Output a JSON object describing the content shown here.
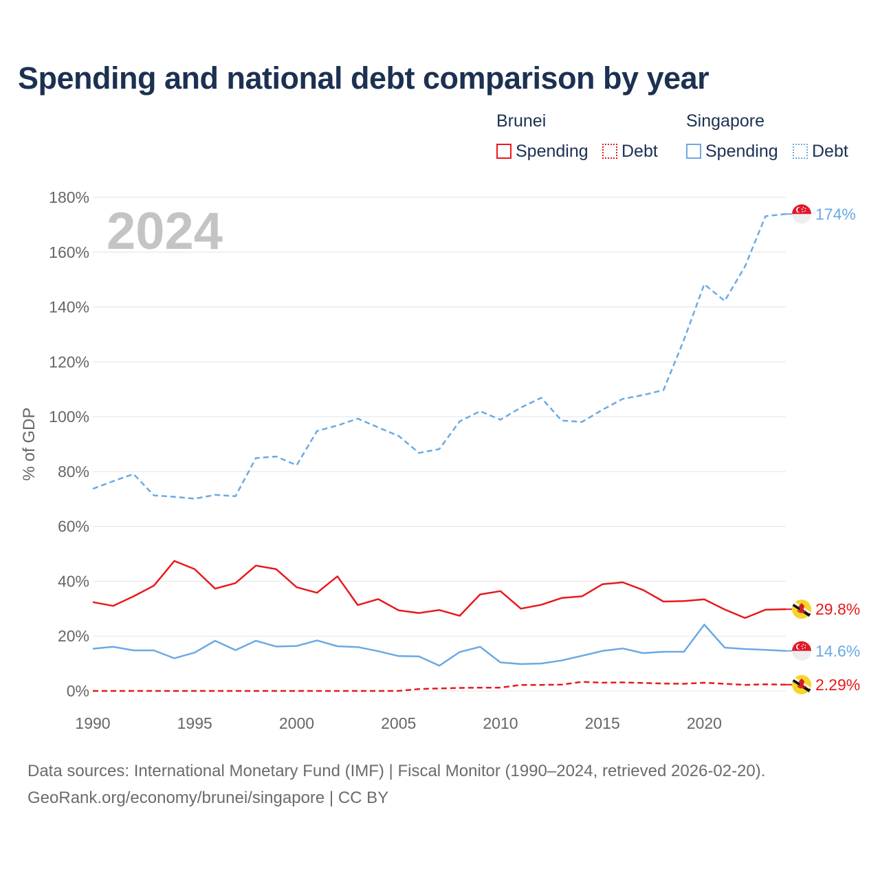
{
  "title": "Spending and national debt comparison by year",
  "legend": {
    "groups": [
      {
        "name": "Brunei",
        "items": [
          "Spending",
          "Debt"
        ]
      },
      {
        "name": "Singapore",
        "items": [
          "Spending",
          "Debt"
        ]
      }
    ]
  },
  "colors": {
    "brunei": "#e8181c",
    "singapore": "#6aa9e4",
    "title": "#1c3152",
    "axis_text": "#666666",
    "year_watermark": "#c4c4c4"
  },
  "chart_data": {
    "type": "line",
    "ylabel": "% of GDP",
    "ylim": [
      0,
      180
    ],
    "yticks": [
      0,
      20,
      40,
      60,
      80,
      100,
      120,
      140,
      160,
      180
    ],
    "ytick_labels": [
      "0%",
      "20%",
      "40%",
      "60%",
      "80%",
      "100%",
      "120%",
      "140%",
      "160%",
      "180%"
    ],
    "xlim": [
      1990,
      2024
    ],
    "xticks": [
      1990,
      1995,
      2000,
      2005,
      2010,
      2015,
      2020
    ],
    "xtick_labels": [
      "1990",
      "1995",
      "2000",
      "2005",
      "2010",
      "2015",
      "2020"
    ],
    "year_label": "2024",
    "grid": true,
    "x": [
      1990,
      1991,
      1992,
      1993,
      1994,
      1995,
      1996,
      1997,
      1998,
      1999,
      2000,
      2001,
      2002,
      2003,
      2004,
      2005,
      2006,
      2007,
      2008,
      2009,
      2010,
      2011,
      2012,
      2013,
      2014,
      2015,
      2016,
      2017,
      2018,
      2019,
      2020,
      2021,
      2022,
      2023,
      2024
    ],
    "series": [
      {
        "name": "Singapore Debt",
        "country": "singapore",
        "metric": "Debt",
        "style": "dashed",
        "end_label": "174%",
        "values": [
          73.7,
          76.5,
          79.1,
          71.3,
          70.8,
          70.1,
          71.5,
          71.0,
          84.9,
          85.5,
          82.3,
          94.8,
          96.8,
          99.3,
          96.1,
          93.0,
          86.8,
          88.2,
          98.3,
          102.0,
          98.9,
          103.3,
          106.9,
          98.6,
          98.1,
          102.5,
          106.5,
          107.9,
          109.7,
          128.0,
          148.3,
          142.2,
          154.8,
          173.1,
          173.9
        ]
      },
      {
        "name": "Brunei Spending",
        "country": "brunei",
        "metric": "Spending",
        "style": "solid",
        "end_label": "29.8%",
        "values": [
          32.4,
          31.0,
          34.5,
          38.4,
          47.4,
          44.4,
          37.3,
          39.3,
          45.7,
          44.4,
          37.8,
          35.8,
          41.8,
          31.3,
          33.5,
          29.4,
          28.4,
          29.5,
          27.4,
          35.2,
          36.4,
          30.0,
          31.4,
          33.9,
          34.5,
          38.9,
          39.6,
          36.8,
          32.6,
          32.8,
          33.4,
          29.7,
          26.6,
          29.6,
          29.8
        ]
      },
      {
        "name": "Singapore Spending",
        "country": "singapore",
        "metric": "Spending",
        "style": "solid",
        "end_label": "14.6%",
        "values": [
          15.4,
          16.1,
          14.8,
          14.8,
          11.9,
          14.0,
          18.3,
          14.9,
          18.3,
          16.2,
          16.4,
          18.4,
          16.3,
          16.0,
          14.5,
          12.7,
          12.6,
          9.2,
          14.2,
          16.1,
          10.4,
          9.8,
          10.0,
          11.1,
          12.8,
          14.6,
          15.5,
          13.8,
          14.3,
          14.3,
          24.2,
          15.8,
          15.3,
          15.0,
          14.6
        ]
      },
      {
        "name": "Brunei Debt",
        "country": "brunei",
        "metric": "Debt",
        "style": "dashed",
        "end_label": "2.29%",
        "values": [
          0.0,
          0.0,
          0.0,
          0.0,
          0.0,
          0.0,
          0.0,
          0.0,
          0.0,
          0.0,
          0.0,
          0.0,
          0.0,
          0.0,
          0.0,
          0.0,
          0.7,
          0.9,
          1.1,
          1.2,
          1.2,
          2.2,
          2.2,
          2.3,
          3.3,
          3.0,
          3.1,
          2.9,
          2.7,
          2.6,
          3.0,
          2.6,
          2.2,
          2.4,
          2.29
        ]
      }
    ]
  },
  "footer": {
    "line1": "Data sources: International Monetary Fund (IMF) | Fiscal Monitor (1990–2024, retrieved 2026-02-20).",
    "line2": "GeoRank.org/economy/brunei/singapore | CC BY"
  }
}
